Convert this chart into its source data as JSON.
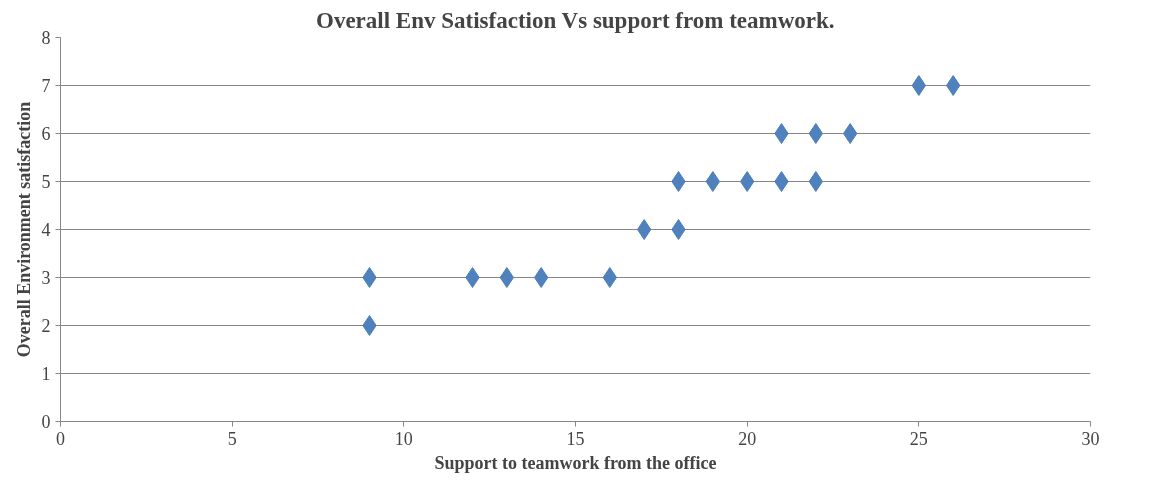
{
  "chart_data": {
    "type": "scatter",
    "title": "Overall Env Satisfaction Vs support from teamwork.",
    "xlabel": "Support to teamwork from the office",
    "ylabel": "Overall Environment satisfaction",
    "x": [
      9,
      9,
      12,
      13,
      14,
      16,
      17,
      18,
      18,
      19,
      20,
      21,
      21,
      22,
      22,
      23,
      25,
      26
    ],
    "values": [
      3,
      2,
      3,
      3,
      3,
      3,
      4,
      4,
      5,
      5,
      5,
      5,
      6,
      6,
      5,
      6,
      7,
      7
    ],
    "color": "#4f81bd",
    "marker": "diamond",
    "grid": "y",
    "xlim": [
      0,
      30
    ],
    "xticks": [
      0,
      5,
      10,
      15,
      20,
      25,
      30
    ],
    "ylim": [
      0,
      8
    ],
    "yticks": [
      0,
      1,
      2,
      3,
      4,
      5,
      6,
      7,
      8
    ]
  }
}
